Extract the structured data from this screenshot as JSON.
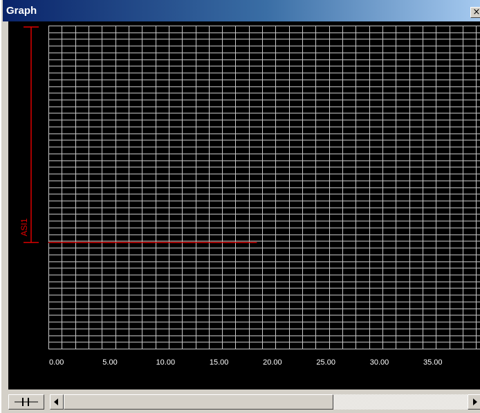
{
  "window": {
    "title": "Graph",
    "close_glyph": "×"
  },
  "chart_data": {
    "type": "line",
    "background": "#000000",
    "grid": true,
    "grid_color": "#c8c8c8",
    "x_tick_labels": [
      "0.00",
      "5.00",
      "10.00",
      "15.00",
      "20.00",
      "25.00",
      "30.00",
      "35.00"
    ],
    "xlim": [
      0,
      40.5
    ],
    "x_minor_step": 1.25,
    "y_gridline_count": 48,
    "series": [
      {
        "name": "ASI1",
        "color": "#e00000",
        "x": [
          0,
          19.5
        ],
        "y_level_fraction_from_bottom": 0.32
      }
    ]
  },
  "bottom_bar": {
    "zoom_icon": "zoom-handle-icon",
    "scroll_left_icon": "arrow-left-icon",
    "scroll_right_icon": "arrow-right-icon",
    "scroll_position": 0.0,
    "scroll_visible_fraction": 0.67
  }
}
